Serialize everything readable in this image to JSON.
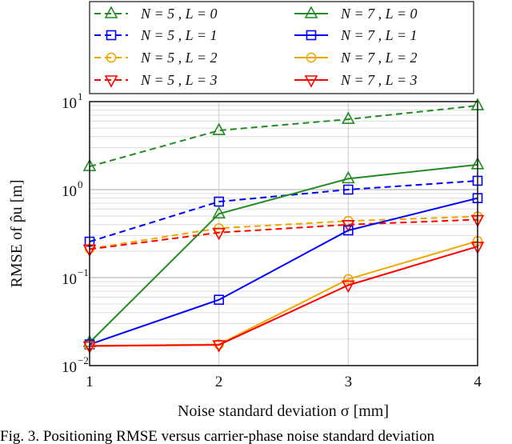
{
  "chart_data": {
    "type": "line",
    "xlabel": "Noise standard deviation σ [mm]",
    "ylabel": "RMSE of p̂u [m]",
    "x": [
      1,
      2,
      3,
      4
    ],
    "xlim": [
      1,
      4
    ],
    "ylim": [
      0.01,
      10
    ],
    "yscale": "log",
    "grid": true,
    "legend_position": "top",
    "xticks": [
      "1",
      "2",
      "3",
      "4"
    ],
    "yticks": [
      {
        "base": "10",
        "exp": "1"
      },
      {
        "base": "10",
        "exp": "0"
      },
      {
        "base": "10",
        "exp": "−1"
      },
      {
        "base": "10",
        "exp": "−2"
      }
    ],
    "series": [
      {
        "name": "N = 5 , L = 0",
        "color": "#228b22",
        "style": "dashed",
        "marker": "triangle-up",
        "values": [
          1.83,
          4.7,
          6.3,
          9.0
        ]
      },
      {
        "name": "N = 7 , L = 0",
        "color": "#228b22",
        "style": "solid",
        "marker": "triangle-up",
        "values": [
          0.0183,
          0.53,
          1.33,
          1.92
        ]
      },
      {
        "name": "N = 5 , L = 1",
        "color": "#0000ff",
        "style": "dashed",
        "marker": "square",
        "values": [
          0.256,
          0.73,
          1.0,
          1.26
        ]
      },
      {
        "name": "N = 7 , L = 1",
        "color": "#0000ff",
        "style": "solid",
        "marker": "square",
        "values": [
          0.0174,
          0.056,
          0.344,
          0.8
        ]
      },
      {
        "name": "N = 5 , L = 2",
        "color": "#f0a800",
        "style": "dashed",
        "marker": "circle",
        "values": [
          0.213,
          0.364,
          0.44,
          0.495
        ]
      },
      {
        "name": "N = 7 , L = 2",
        "color": "#f0a800",
        "style": "solid",
        "marker": "circle",
        "values": [
          0.0168,
          0.0174,
          0.096,
          0.26
        ]
      },
      {
        "name": "N = 5 , L = 3",
        "color": "#ff0000",
        "style": "dashed",
        "marker": "triangle-down",
        "values": [
          0.21,
          0.325,
          0.4,
          0.456
        ]
      },
      {
        "name": "N = 7 , L = 3",
        "color": "#ff0000",
        "style": "solid",
        "marker": "triangle-down",
        "values": [
          0.0167,
          0.0172,
          0.082,
          0.226
        ]
      }
    ]
  },
  "caption": "Fig. 3.  Positioning RMSE versus carrier-phase noise standard deviation"
}
